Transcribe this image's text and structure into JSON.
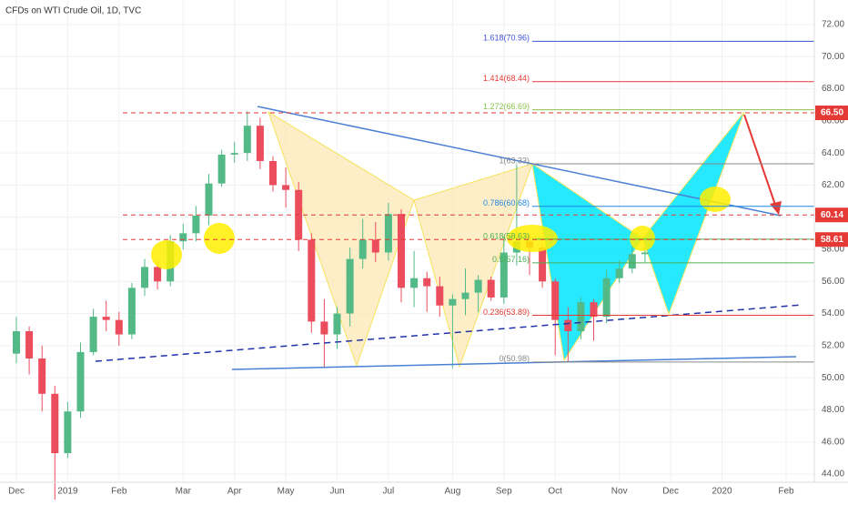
{
  "chart_data": {
    "type": "candlestick",
    "title": "CFDs on WTI Crude Oil, 1D, TVC",
    "categories": [
      "Dec",
      null,
      null,
      null,
      "2019",
      null,
      null,
      null,
      "Feb",
      null,
      null,
      null,
      null,
      "Mar",
      null,
      null,
      null,
      "Apr",
      null,
      null,
      null,
      "May",
      null,
      null,
      null,
      "Jun",
      null,
      null,
      null,
      "Jul",
      null,
      null,
      null,
      null,
      "Aug",
      null,
      null,
      null,
      "Sep",
      null,
      null,
      null,
      "Oct",
      null,
      null,
      null,
      null,
      "Nov",
      null,
      null,
      null,
      "Dec",
      null,
      null,
      null,
      "2020",
      null,
      null,
      null,
      null,
      "Feb",
      null
    ],
    "open": [
      51.5,
      52.9,
      51.2,
      49.0,
      45.3,
      47.9,
      51.6,
      53.8,
      53.6,
      52.7,
      55.6,
      56.9,
      56.0,
      58.5,
      59.0,
      60.1,
      62.1,
      63.9,
      64.0,
      65.7,
      63.5,
      62.0,
      61.7,
      58.6,
      53.5,
      52.7,
      54.0,
      57.4,
      58.6,
      57.8,
      60.2,
      55.6,
      56.2,
      55.7,
      54.5,
      54.9,
      55.3,
      56.1,
      55.0,
      57.8,
      58.5,
      58.1,
      56.0,
      53.6,
      52.9,
      54.7,
      53.8,
      56.2,
      56.8,
      57.7,
      null,
      null,
      null,
      null,
      null,
      null,
      null,
      null,
      null,
      null,
      null,
      null
    ],
    "high": [
      53.8,
      53.2,
      52.0,
      49.5,
      48.5,
      52.2,
      54.3,
      54.8,
      54.1,
      55.9,
      57.4,
      57.3,
      58.9,
      59.6,
      60.7,
      62.7,
      64.2,
      64.7,
      66.6,
      66.2,
      63.8,
      63.1,
      62.2,
      59.0,
      54.9,
      54.4,
      58.1,
      59.9,
      59.7,
      60.9,
      60.5,
      57.9,
      56.6,
      56.3,
      55.2,
      56.8,
      56.4,
      56.3,
      58.8,
      63.3,
      58.9,
      58.3,
      56.2,
      54.4,
      55.0,
      54.9,
      56.7,
      57.3,
      58.3,
      58.1,
      null,
      null,
      null,
      null,
      null,
      null,
      null,
      null,
      null,
      null,
      null,
      null
    ],
    "low": [
      50.9,
      50.2,
      47.9,
      42.4,
      45.0,
      47.5,
      51.4,
      52.9,
      52.0,
      52.4,
      55.1,
      55.5,
      55.7,
      58.0,
      58.5,
      59.5,
      61.9,
      63.4,
      63.5,
      63.0,
      61.6,
      60.6,
      57.9,
      52.8,
      50.6,
      51.8,
      53.2,
      56.8,
      57.2,
      57.3,
      54.7,
      54.4,
      54.1,
      53.8,
      50.6,
      53.9,
      54.1,
      54.8,
      54.6,
      57.0,
      56.4,
      55.6,
      51.4,
      50.98,
      52.4,
      52.3,
      53.4,
      55.9,
      56.5,
      57.2,
      null,
      null,
      null,
      null,
      null,
      null,
      null,
      null,
      null,
      null,
      null,
      null
    ],
    "close": [
      52.9,
      51.2,
      49.0,
      45.3,
      47.9,
      51.6,
      53.8,
      53.6,
      52.7,
      55.6,
      56.9,
      56.0,
      58.5,
      59.0,
      60.1,
      62.1,
      63.9,
      64.0,
      65.7,
      63.5,
      62.0,
      61.7,
      58.6,
      53.5,
      52.7,
      54.0,
      57.4,
      58.6,
      57.8,
      60.2,
      55.6,
      56.2,
      55.7,
      54.5,
      54.9,
      55.3,
      56.1,
      55.0,
      57.8,
      58.5,
      58.1,
      56.0,
      53.6,
      52.9,
      54.7,
      53.8,
      56.2,
      56.8,
      57.7,
      57.8,
      null,
      null,
      null,
      null,
      null,
      null,
      null,
      null,
      null,
      null,
      null,
      null
    ],
    "up_color": "#53b987",
    "down_color": "#eb4d5c",
    "ylim": [
      43.6,
      73.5
    ],
    "yticks": [
      {
        "value": 44,
        "label": "44.00"
      },
      {
        "value": 46,
        "label": "46.00"
      },
      {
        "value": 48,
        "label": "48.00"
      },
      {
        "value": 50,
        "label": "50.00"
      },
      {
        "value": 52,
        "label": "52.00"
      },
      {
        "value": 54,
        "label": "54.00"
      },
      {
        "value": 56,
        "label": "56.00"
      },
      {
        "value": 58,
        "label": "58.00"
      },
      {
        "value": 60,
        "label": "60.00"
      },
      {
        "value": 62,
        "label": "62.00"
      },
      {
        "value": 64,
        "label": "64.00"
      },
      {
        "value": 66,
        "label": "66.00"
      },
      {
        "value": 68,
        "label": "68.00"
      },
      {
        "value": 70,
        "label": "70.00"
      },
      {
        "value": 72,
        "label": "72.00"
      }
    ],
    "fib_levels": [
      {
        "value": 70.96,
        "label": "1.618(70.96)",
        "color": "#3f51d6"
      },
      {
        "value": 68.44,
        "label": "1.414(68.44)",
        "color": "#e53935"
      },
      {
        "value": 66.69,
        "label": "1.272(66.69)",
        "color": "#8bc34a"
      },
      {
        "value": 63.33,
        "label": "1(63.33)",
        "color": "#888888"
      },
      {
        "value": 60.68,
        "label": "0.786(60.68)",
        "color": "#1e88e5"
      },
      {
        "value": 58.63,
        "label": "0.618(58.63)",
        "color": "#4caf50"
      },
      {
        "value": 57.16,
        "label": "0.5(57.16)",
        "color": "#4caf50"
      },
      {
        "value": 53.89,
        "label": "0.236(53.89)",
        "color": "#e53935"
      },
      {
        "value": 50.98,
        "label": "0(50.98)",
        "color": "#888888"
      }
    ],
    "price_labels": [
      {
        "value": 66.5,
        "label": "66.50",
        "color": "#e53935"
      },
      {
        "value": 60.14,
        "label": "60.14",
        "color": "#e53935"
      },
      {
        "value": 58.61,
        "label": "58.61",
        "color": "#e53935"
      }
    ]
  }
}
